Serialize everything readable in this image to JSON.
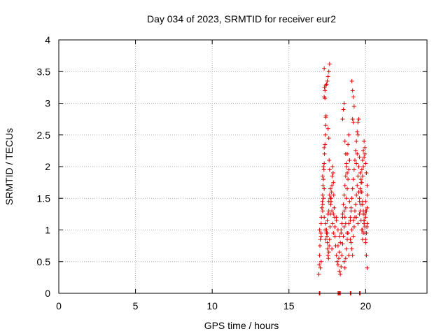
{
  "chart_data": {
    "type": "scatter",
    "title": "Day 034 of 2023, SRMTID for receiver eur2",
    "xlabel": "GPS time / hours",
    "ylabel": "SRMTID / TECUs",
    "xlim": [
      0,
      24
    ],
    "ylim": [
      0,
      4
    ],
    "xticks": [
      0,
      5,
      10,
      15,
      20
    ],
    "xtick_labels": [
      "0",
      "5",
      "10",
      "15",
      "20"
    ],
    "yticks": [
      0,
      0.5,
      1,
      1.5,
      2,
      2.5,
      3,
      3.5,
      4
    ],
    "ytick_labels": [
      "0",
      "0.5",
      "1",
      "1.5",
      "2",
      "2.5",
      "3",
      "3.5",
      "4"
    ],
    "grid": true,
    "marker": "+",
    "series": [
      {
        "name": "SRMTID",
        "color": "#e00000",
        "x": [
          16.95,
          16.98,
          17.0,
          17.02,
          17.05,
          17.08,
          17.1,
          17.12,
          17.15,
          17.18,
          17.2,
          17.22,
          17.25,
          17.28,
          17.3,
          17.32,
          17.35,
          17.38,
          17.4,
          17.42,
          17.45,
          17.48,
          17.5,
          17.52,
          17.55,
          17.58,
          17.6,
          17.62,
          17.65,
          17.68,
          17.7,
          17.72,
          17.75,
          17.78,
          17.8,
          17.82,
          17.85,
          17.88,
          17.9,
          17.92,
          17.95,
          17.98,
          17.05,
          17.1,
          17.2,
          17.25,
          17.3,
          17.35,
          17.4,
          17.45,
          17.5,
          17.55,
          17.6,
          17.65,
          17.7,
          17.75,
          17.8,
          17.85,
          17.9,
          17.3,
          17.35,
          17.4,
          17.45,
          17.5,
          17.55,
          17.6,
          17.65,
          17.3,
          17.32,
          17.35,
          17.4,
          17.2,
          17.25,
          17.3,
          17.55,
          17.6,
          17.62,
          17.65,
          18.0,
          18.05,
          18.1,
          18.15,
          18.2,
          18.25,
          18.3,
          18.35,
          18.4,
          18.45,
          18.5,
          18.55,
          18.6,
          18.65,
          18.7,
          18.75,
          18.8,
          18.85,
          18.9,
          18.95,
          18.1,
          18.2,
          18.3,
          18.35,
          18.4,
          18.45,
          18.5,
          18.55,
          18.6,
          18.65,
          18.7,
          18.75,
          18.8,
          18.85,
          18.9,
          18.95,
          18.5,
          18.55,
          18.6,
          18.65,
          18.7,
          18.75,
          18.8,
          18.6,
          18.65,
          18.7,
          18.75,
          18.8,
          18.85,
          18.9,
          19.0,
          19.05,
          19.1,
          19.15,
          19.2,
          19.25,
          19.3,
          19.35,
          19.4,
          19.45,
          19.5,
          19.55,
          19.6,
          19.65,
          19.7,
          19.75,
          19.8,
          19.85,
          19.9,
          19.95,
          19.05,
          19.1,
          19.15,
          19.2,
          19.25,
          19.3,
          19.35,
          19.4,
          19.45,
          19.5,
          19.55,
          19.6,
          19.65,
          19.7,
          19.75,
          19.8,
          19.85,
          19.9,
          19.95,
          20.0,
          19.1,
          19.15,
          19.2,
          19.25,
          19.15,
          19.2,
          19.4,
          19.45,
          19.5,
          19.55,
          19.0,
          19.05,
          18.95,
          19.6,
          19.65,
          19.7,
          19.75,
          19.8,
          19.85,
          19.9,
          19.95,
          20.0,
          20.05,
          20.1,
          20.12,
          19.8,
          19.85,
          19.9,
          19.95,
          20.0,
          20.05,
          20.1,
          19.7,
          19.75,
          19.8,
          19.85,
          19.9,
          19.95,
          20.0,
          20.05,
          20.1,
          20.0,
          20.05,
          20.08,
          20.1,
          17.0,
          17.1,
          17.2,
          17.3,
          17.4,
          17.5,
          17.6,
          17.7,
          17.8,
          17.9,
          18.0,
          18.1,
          18.2,
          18.3,
          18.4,
          18.5,
          18.6,
          18.7,
          18.8,
          18.9,
          19.0,
          19.1,
          19.2,
          19.3,
          19.4,
          19.5,
          19.6,
          19.7,
          19.8,
          19.9,
          20.0,
          16.98,
          17.02,
          18.2,
          18.25,
          18.3,
          18.35,
          19.0,
          19.05,
          19.6,
          19.65
        ],
        "y": [
          0.3,
          0.45,
          0.6,
          0.75,
          0.85,
          0.95,
          1.1,
          1.2,
          1.35,
          1.45,
          1.55,
          1.7,
          1.8,
          1.95,
          2.05,
          2.2,
          2.35,
          2.5,
          2.65,
          2.8,
          1.0,
          0.9,
          0.8,
          0.7,
          0.6,
          0.55,
          0.65,
          0.75,
          0.85,
          1.05,
          1.25,
          1.4,
          1.5,
          1.6,
          1.7,
          1.85,
          2.0,
          1.9,
          1.75,
          1.55,
          1.35,
          1.2,
          0.4,
          0.5,
          1.3,
          1.5,
          1.65,
          1.0,
          0.85,
          0.95,
          1.15,
          1.25,
          1.45,
          1.55,
          1.65,
          1.45,
          1.3,
          1.1,
          0.95,
          3.1,
          3.2,
          3.28,
          3.3,
          3.35,
          3.42,
          3.5,
          3.62,
          3.55,
          3.25,
          3.08,
          2.78,
          1.85,
          2.0,
          2.3,
          2.6,
          2.45,
          2.1,
          1.95,
          0.9,
          0.75,
          0.6,
          0.5,
          0.45,
          0.55,
          0.65,
          0.8,
          0.95,
          1.1,
          1.25,
          1.4,
          1.55,
          1.7,
          1.85,
          2.0,
          2.2,
          2.35,
          2.5,
          2.1,
          1.2,
          1.0,
          0.35,
          0.3,
          0.42,
          0.6,
          0.78,
          0.9,
          1.05,
          1.2,
          1.35,
          1.5,
          1.65,
          1.8,
          1.95,
          2.1,
          2.75,
          2.9,
          3.0,
          2.4,
          2.2,
          2.05,
          1.9,
          0.5,
          0.4,
          0.55,
          0.7,
          0.85,
          0.95,
          1.1,
          1.2,
          1.35,
          1.5,
          1.65,
          1.8,
          1.95,
          2.1,
          2.25,
          2.4,
          2.55,
          2.7,
          1.6,
          1.45,
          1.3,
          1.15,
          1.0,
          0.85,
          0.95,
          1.1,
          1.25,
          0.8,
          0.7,
          0.6,
          0.9,
          1.05,
          1.2,
          1.4,
          1.55,
          1.7,
          1.85,
          2.0,
          2.15,
          1.9,
          1.75,
          1.6,
          1.45,
          1.3,
          1.15,
          1.05,
          1.2,
          3.35,
          3.2,
          3.1,
          2.95,
          2.75,
          2.7,
          2.05,
          2.2,
          2.5,
          2.75,
          1.15,
          1.3,
          1.45,
          1.5,
          1.65,
          1.8,
          1.95,
          2.1,
          2.25,
          2.4,
          2.2,
          2.05,
          1.9,
          1.7,
          1.55,
          1.4,
          1.25,
          1.1,
          0.95,
          0.8,
          0.6,
          0.4,
          1.6,
          1.75,
          1.85,
          2.0,
          2.15,
          2.3,
          1.45,
          1.3,
          1.1,
          0.85,
          0.95,
          1.05,
          1.35,
          1.0,
          0.9,
          1.4,
          1.2,
          1.1,
          0.95,
          1.3,
          1.5,
          0.7,
          1.25,
          1.05,
          1.15,
          0.75,
          0.9,
          1.0,
          1.2,
          1.3,
          1.1,
          0.95,
          0.6,
          0.85,
          1.0,
          1.15,
          1.3,
          1.2,
          1.1,
          1.25,
          1.4,
          1.0,
          1.15,
          1.3,
          0.0,
          0.0,
          0.0,
          0.0,
          0.0,
          0.0,
          0.0,
          0.0,
          0.0,
          0.0
        ]
      }
    ]
  }
}
